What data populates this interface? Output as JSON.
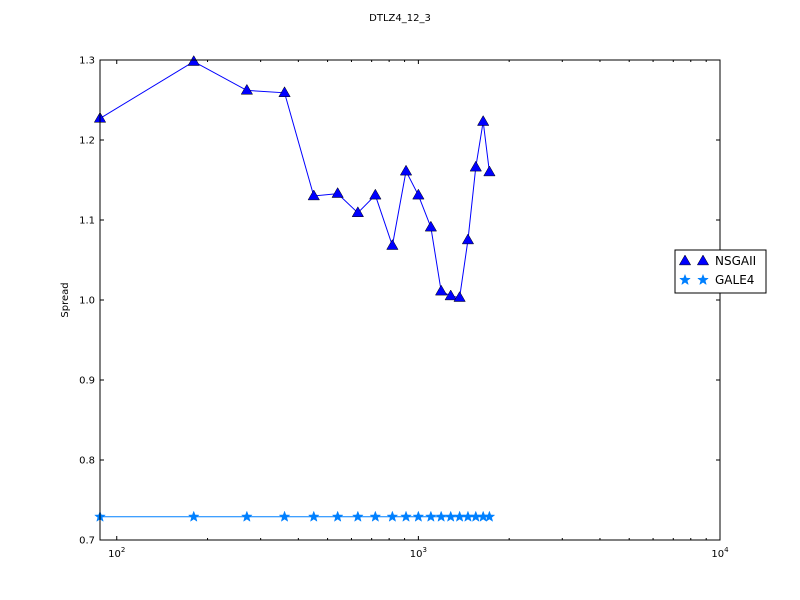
{
  "chart_data": {
    "type": "line",
    "title": "DTLZ4_12_3",
    "xlabel": "",
    "ylabel": "Spread",
    "xscale": "log",
    "xlim": [
      88,
      10000
    ],
    "ylim": [
      0.7,
      1.3
    ],
    "xticks": [
      {
        "value": 100,
        "base": "10",
        "exp": "2"
      },
      {
        "value": 1000,
        "base": "10",
        "exp": "3"
      },
      {
        "value": 10000,
        "base": "10",
        "exp": "4"
      }
    ],
    "yticks": [
      "0.7",
      "0.8",
      "0.9",
      "1.0",
      "1.1",
      "1.2",
      "1.3"
    ],
    "grid": false,
    "legend_position": "right",
    "series": [
      {
        "name": "NSGAII",
        "marker": "triangle",
        "color": "#0000ff",
        "x": [
          88,
          180,
          270,
          360,
          450,
          540,
          630,
          720,
          820,
          910,
          1000,
          1100,
          1190,
          1280,
          1370,
          1460,
          1550,
          1640,
          1720
        ],
        "y": [
          1.227,
          1.298,
          1.262,
          1.259,
          1.13,
          1.133,
          1.109,
          1.131,
          1.068,
          1.161,
          1.131,
          1.091,
          1.011,
          1.005,
          1.003,
          1.075,
          1.166,
          1.223,
          1.16
        ]
      },
      {
        "name": "GALE4",
        "marker": "star",
        "color": "#0080ff",
        "x": [
          88,
          180,
          270,
          360,
          450,
          540,
          630,
          720,
          820,
          910,
          1000,
          1100,
          1190,
          1280,
          1370,
          1460,
          1550,
          1640,
          1720
        ],
        "y": [
          0.729,
          0.729,
          0.729,
          0.729,
          0.729,
          0.729,
          0.729,
          0.729,
          0.729,
          0.729,
          0.729,
          0.729,
          0.729,
          0.729,
          0.729,
          0.729,
          0.729,
          0.729,
          0.729
        ]
      }
    ]
  }
}
